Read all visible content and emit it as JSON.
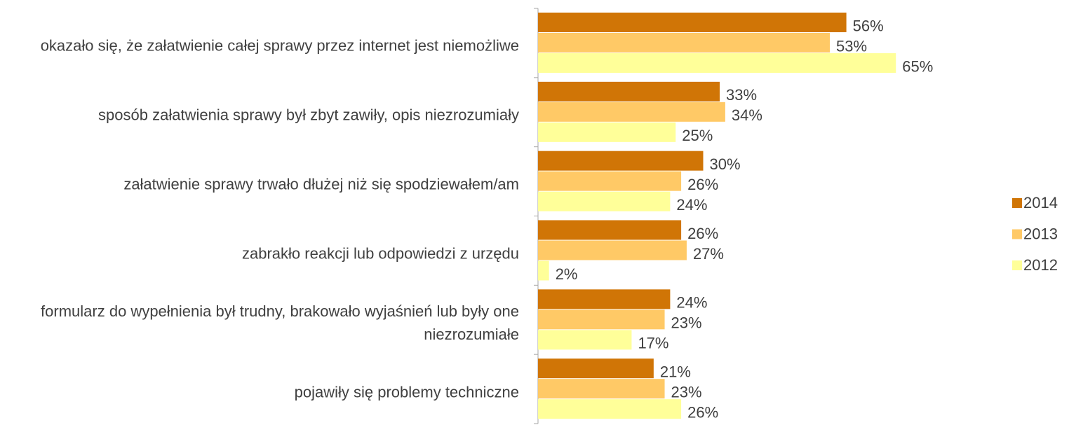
{
  "chart_data": {
    "type": "bar",
    "orientation": "horizontal",
    "categories": [
      "okazało się, że załatwienie całej sprawy przez internet jest niemożliwe",
      "sposób załatwienia sprawy był zbyt zawiły, opis niezrozumiały",
      "załatwienie sprawy trwało dłużej niż się spodziewałem/am",
      "zabrakło reakcji lub odpowiedzi z urzędu",
      "formularz do wypełnienia był trudny, brakowało wyjaśnień lub były one niezrozumiałe",
      "pojawiły się problemy techniczne"
    ],
    "series": [
      {
        "name": "2014",
        "color": "#d07506",
        "values": [
          56,
          33,
          30,
          26,
          24,
          21
        ],
        "value_labels": [
          "56%",
          "33%",
          "30%",
          "26%",
          "24%",
          "21%"
        ]
      },
      {
        "name": "2013",
        "color": "#ffc966",
        "values": [
          53,
          34,
          26,
          27,
          23,
          23
        ],
        "value_labels": [
          "53%",
          "34%",
          "26%",
          "27%",
          "23%",
          "23%"
        ]
      },
      {
        "name": "2012",
        "color": "#ffff99",
        "values": [
          65,
          25,
          24,
          2,
          17,
          26
        ],
        "value_labels": [
          "65%",
          "25%",
          "24%",
          "2%",
          "17%",
          "26%"
        ]
      }
    ],
    "legend": "right"
  }
}
